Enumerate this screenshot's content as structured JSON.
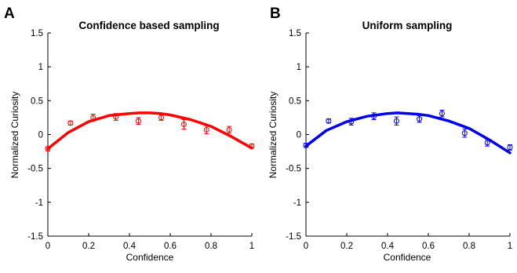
{
  "chart_data": [
    {
      "type": "line",
      "panel_letter": "A",
      "title": "Confidence based sampling",
      "xlabel": "Confidence",
      "ylabel": "Normalized Curiosity",
      "xlim": [
        0,
        1
      ],
      "ylim": [
        -1.5,
        1.5
      ],
      "xticks": [
        0,
        0.2,
        0.4,
        0.6,
        0.8,
        1
      ],
      "xtick_labels": [
        "0",
        "0.2",
        "0.4",
        "0.6",
        "0.8",
        "1"
      ],
      "yticks": [
        -1.5,
        -1,
        -0.5,
        0,
        0.5,
        1,
        1.5
      ],
      "ytick_labels": [
        "-1.5",
        "-1",
        "-0.5",
        "0",
        "0.5",
        "1",
        "1.5"
      ],
      "color": "#ff0000",
      "series": [
        {
          "kind": "fit_curve",
          "x": [
            0,
            0.1,
            0.2,
            0.3,
            0.4,
            0.45,
            0.5,
            0.55,
            0.6,
            0.7,
            0.8,
            0.9,
            1.0
          ],
          "y": [
            -0.21,
            0.03,
            0.19,
            0.28,
            0.31,
            0.32,
            0.32,
            0.31,
            0.29,
            0.22,
            0.12,
            -0.03,
            -0.2
          ]
        },
        {
          "kind": "means_with_error",
          "x": [
            0,
            0.111,
            0.222,
            0.333,
            0.444,
            0.556,
            0.667,
            0.778,
            0.889,
            1.0
          ],
          "y": [
            -0.21,
            0.17,
            0.25,
            0.26,
            0.2,
            0.25,
            0.15,
            0.07,
            0.07,
            -0.17
          ],
          "err": [
            0.03,
            0.03,
            0.05,
            0.05,
            0.05,
            0.04,
            0.07,
            0.06,
            0.05,
            0.03
          ]
        }
      ]
    },
    {
      "type": "line",
      "panel_letter": "B",
      "title": "Uniform sampling",
      "xlabel": "Confidence",
      "ylabel": "Normalized Curiosity",
      "xlim": [
        0,
        1
      ],
      "ylim": [
        -1.5,
        1.5
      ],
      "xticks": [
        0,
        0.2,
        0.4,
        0.6,
        0.8,
        1
      ],
      "xtick_labels": [
        "0",
        "0.2",
        "0.4",
        "0.6",
        "0.8",
        "1"
      ],
      "yticks": [
        -1.5,
        -1,
        -0.5,
        0,
        0.5,
        1,
        1.5
      ],
      "ytick_labels": [
        "-1.5",
        "-1",
        "-0.5",
        "0",
        "0.5",
        "1",
        "1.5"
      ],
      "color": "#0000ee",
      "series": [
        {
          "kind": "fit_curve",
          "x": [
            0,
            0.1,
            0.2,
            0.3,
            0.4,
            0.45,
            0.5,
            0.55,
            0.6,
            0.7,
            0.8,
            0.9,
            1.0
          ],
          "y": [
            -0.17,
            0.06,
            0.19,
            0.27,
            0.31,
            0.32,
            0.31,
            0.3,
            0.28,
            0.2,
            0.09,
            -0.08,
            -0.27
          ]
        },
        {
          "kind": "means_with_error",
          "x": [
            0,
            0.111,
            0.222,
            0.333,
            0.444,
            0.556,
            0.667,
            0.778,
            0.889,
            1.0
          ],
          "y": [
            -0.16,
            0.2,
            0.19,
            0.27,
            0.2,
            0.23,
            0.31,
            0.02,
            -0.12,
            -0.19
          ],
          "err": [
            0.03,
            0.03,
            0.05,
            0.05,
            0.06,
            0.05,
            0.05,
            0.06,
            0.05,
            0.04
          ]
        }
      ]
    }
  ]
}
